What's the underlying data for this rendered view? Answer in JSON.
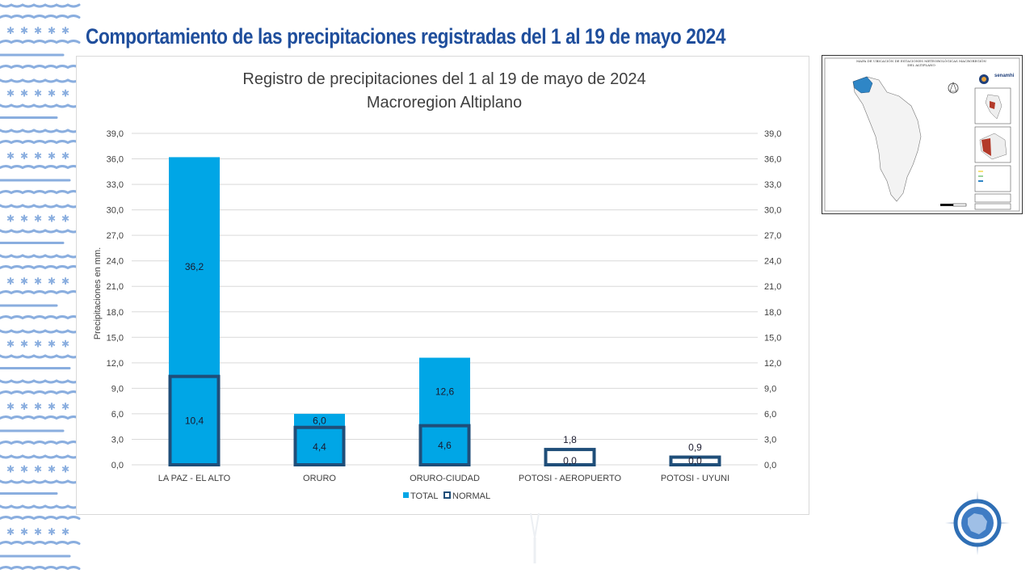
{
  "slide": {
    "title": "Comportamiento de las precipitaciones registradas del 1 al 19 de mayo 2024"
  },
  "map": {
    "title": "MAPA DE UBICACIÓN DE ESTACIONES METEOROLÓGICAS MACROREGIÓN DEL ALTIPLANO",
    "brand": "senamhi"
  },
  "colors": {
    "title": "#1f4e9c",
    "total_bar": "#00a6e6",
    "normal_outline": "#1f4e79",
    "grid": "#d9d9d9",
    "text": "#404040"
  },
  "chart_data": {
    "type": "bar",
    "title": "Registro de precipitaciones del 1 al 19 de mayo de 2024",
    "subtitle": "Macroregion Altiplano",
    "ylabel": "Precipitaciones en mm.",
    "ylim": [
      0,
      39
    ],
    "yticks": [
      "0,0",
      "3,0",
      "6,0",
      "9,0",
      "12,0",
      "15,0",
      "18,0",
      "21,0",
      "24,0",
      "27,0",
      "30,0",
      "33,0",
      "36,0",
      "39,0"
    ],
    "categories": [
      "LA PAZ - EL ALTO",
      "ORURO",
      "ORURO-CIUDAD",
      "POTOSI - AEROPUERTO",
      "POTOSI - UYUNI"
    ],
    "series": [
      {
        "name": "TOTAL",
        "values": [
          36.2,
          6.0,
          12.6,
          0.0,
          0.0
        ],
        "labels": [
          "36,2",
          "6,0",
          "12,6",
          "0,0",
          "0,0"
        ]
      },
      {
        "name": "NORMAL",
        "values": [
          10.4,
          4.4,
          4.6,
          1.8,
          0.9
        ],
        "labels": [
          "10,4",
          "4,4",
          "4,6",
          "1,8",
          "0,9"
        ]
      }
    ],
    "grid": true,
    "legend_position": "bottom",
    "secondary_axis": true
  }
}
